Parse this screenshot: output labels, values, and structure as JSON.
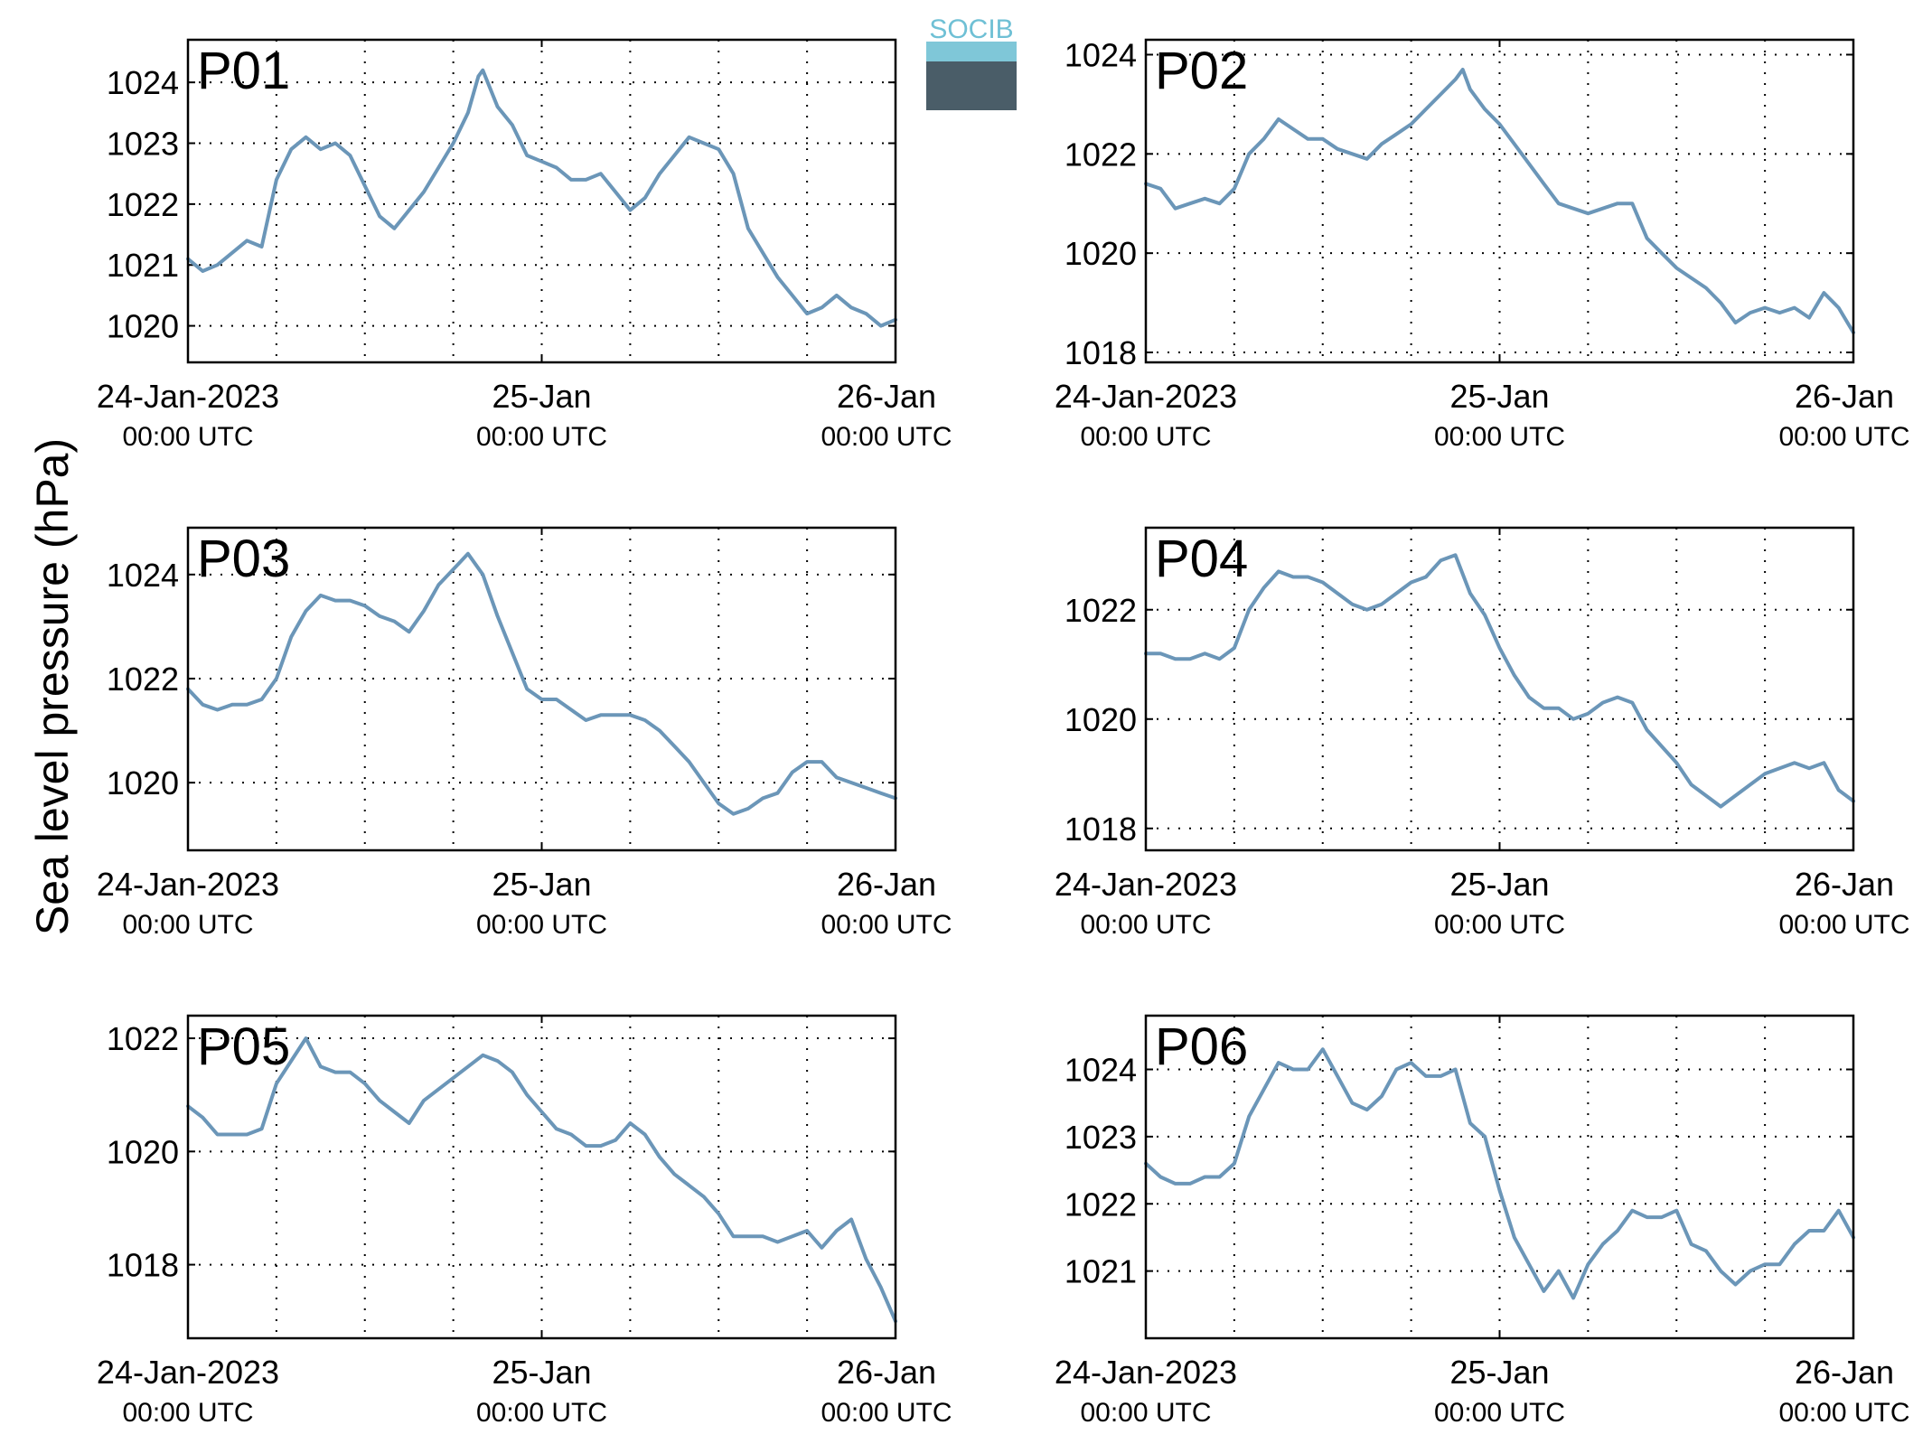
{
  "figure": {
    "ylabel": "Sea level pressure (hPa)",
    "logo_text": "SOCIB",
    "line_color": "#6b96b8",
    "label_color": "#ff0000",
    "x_tick_labels": [
      {
        "top": "24-Jan-2023",
        "bottom": "00:00 UTC"
      },
      {
        "top": "25-Jan",
        "bottom": "00:00 UTC"
      },
      {
        "top": "26-Jan",
        "bottom": "00:00 UTC"
      }
    ]
  },
  "chart_data": [
    {
      "type": "line",
      "title": "P01",
      "x_unit": "hours since 24-Jan-2023 00:00 UTC",
      "xlim": [
        0,
        48
      ],
      "ylim": [
        1019.4,
        1024.7
      ],
      "yticks": [
        1020,
        1021,
        1022,
        1023,
        1024
      ],
      "grid": true,
      "series": [
        {
          "x": [
            0,
            1,
            2,
            3,
            4,
            5,
            6,
            7,
            8,
            9,
            10,
            11,
            12,
            13,
            14,
            15,
            16,
            17,
            18,
            19,
            19.7,
            20,
            21,
            22,
            23,
            24,
            25,
            26,
            27,
            28,
            29,
            30,
            31,
            32,
            33,
            34,
            35,
            36,
            37,
            38,
            39,
            40,
            41,
            42,
            43,
            44,
            45,
            46,
            47,
            48
          ],
          "y": [
            1021.1,
            1020.9,
            1021.0,
            1021.2,
            1021.4,
            1021.3,
            1022.4,
            1022.9,
            1023.1,
            1022.9,
            1023.0,
            1022.8,
            1022.3,
            1021.8,
            1021.6,
            1021.9,
            1022.2,
            1022.6,
            1023.0,
            1023.5,
            1024.1,
            1024.2,
            1023.6,
            1023.3,
            1022.8,
            1022.7,
            1022.6,
            1022.4,
            1022.4,
            1022.5,
            1022.2,
            1021.9,
            1022.1,
            1022.5,
            1022.8,
            1023.1,
            1023.0,
            1022.9,
            1022.5,
            1021.6,
            1021.2,
            1020.8,
            1020.5,
            1020.2,
            1020.3,
            1020.5,
            1020.3,
            1020.2,
            1020.0,
            1020.1
          ]
        }
      ]
    },
    {
      "type": "line",
      "title": "P02",
      "x_unit": "hours since 24-Jan-2023 00:00 UTC",
      "xlim": [
        0,
        48
      ],
      "ylim": [
        1017.8,
        1024.3
      ],
      "yticks": [
        1018,
        1020,
        1022,
        1024
      ],
      "grid": true,
      "series": [
        {
          "x": [
            0,
            1,
            2,
            3,
            4,
            5,
            6,
            7,
            8,
            9,
            10,
            11,
            12,
            13,
            14,
            15,
            16,
            17,
            18,
            19,
            20,
            21,
            21.5,
            22,
            23,
            24,
            25,
            26,
            27,
            28,
            29,
            30,
            31,
            32,
            33,
            34,
            35,
            36,
            37,
            38,
            39,
            40,
            41,
            42,
            43,
            44,
            45,
            46,
            47,
            48
          ],
          "y": [
            1021.4,
            1021.3,
            1020.9,
            1021.0,
            1021.1,
            1021.0,
            1021.3,
            1022.0,
            1022.3,
            1022.7,
            1022.5,
            1022.3,
            1022.3,
            1022.1,
            1022.0,
            1021.9,
            1022.2,
            1022.4,
            1022.6,
            1022.9,
            1023.2,
            1023.5,
            1023.7,
            1023.3,
            1022.9,
            1022.6,
            1022.2,
            1021.8,
            1021.4,
            1021.0,
            1020.9,
            1020.8,
            1020.9,
            1021.0,
            1021.0,
            1020.3,
            1020.0,
            1019.7,
            1019.5,
            1019.3,
            1019.0,
            1018.6,
            1018.8,
            1018.9,
            1018.8,
            1018.9,
            1018.7,
            1019.2,
            1018.9,
            1018.4
          ]
        }
      ]
    },
    {
      "type": "line",
      "title": "P03",
      "x_unit": "hours since 24-Jan-2023 00:00 UTC",
      "xlim": [
        0,
        48
      ],
      "ylim": [
        1018.7,
        1024.9
      ],
      "yticks": [
        1020,
        1022,
        1024
      ],
      "grid": true,
      "series": [
        {
          "x": [
            0,
            1,
            2,
            3,
            4,
            5,
            6,
            7,
            8,
            9,
            10,
            11,
            12,
            13,
            14,
            15,
            16,
            17,
            18,
            19,
            20,
            21,
            22,
            23,
            24,
            25,
            26,
            27,
            28,
            29,
            30,
            31,
            32,
            33,
            34,
            35,
            36,
            37,
            38,
            39,
            40,
            41,
            42,
            43,
            44,
            45,
            46,
            47,
            48
          ],
          "y": [
            1021.8,
            1021.5,
            1021.4,
            1021.5,
            1021.5,
            1021.6,
            1022.0,
            1022.8,
            1023.3,
            1023.6,
            1023.5,
            1023.5,
            1023.4,
            1023.2,
            1023.1,
            1022.9,
            1023.3,
            1023.8,
            1024.1,
            1024.4,
            1024.0,
            1023.2,
            1022.5,
            1021.8,
            1021.6,
            1021.6,
            1021.4,
            1021.2,
            1021.3,
            1021.3,
            1021.3,
            1021.2,
            1021.0,
            1020.7,
            1020.4,
            1020.0,
            1019.6,
            1019.4,
            1019.5,
            1019.7,
            1019.8,
            1020.2,
            1020.4,
            1020.4,
            1020.1,
            1020.0,
            1019.9,
            1019.8,
            1019.7
          ]
        }
      ]
    },
    {
      "type": "line",
      "title": "P04",
      "x_unit": "hours since 24-Jan-2023 00:00 UTC",
      "xlim": [
        0,
        48
      ],
      "ylim": [
        1017.6,
        1023.5
      ],
      "yticks": [
        1018,
        1020,
        1022
      ],
      "grid": true,
      "series": [
        {
          "x": [
            0,
            1,
            2,
            3,
            4,
            5,
            6,
            7,
            8,
            9,
            10,
            11,
            12,
            13,
            14,
            15,
            16,
            17,
            18,
            19,
            20,
            21,
            22,
            23,
            24,
            25,
            26,
            27,
            28,
            29,
            30,
            31,
            32,
            33,
            34,
            35,
            36,
            37,
            38,
            39,
            40,
            41,
            42,
            43,
            44,
            45,
            46,
            47,
            48
          ],
          "y": [
            1021.2,
            1021.2,
            1021.1,
            1021.1,
            1021.2,
            1021.1,
            1021.3,
            1022.0,
            1022.4,
            1022.7,
            1022.6,
            1022.6,
            1022.5,
            1022.3,
            1022.1,
            1022.0,
            1022.1,
            1022.3,
            1022.5,
            1022.6,
            1022.9,
            1023.0,
            1022.3,
            1021.9,
            1021.3,
            1020.8,
            1020.4,
            1020.2,
            1020.2,
            1020.0,
            1020.1,
            1020.3,
            1020.4,
            1020.3,
            1019.8,
            1019.5,
            1019.2,
            1018.8,
            1018.6,
            1018.4,
            1018.6,
            1018.8,
            1019.0,
            1019.1,
            1019.2,
            1019.1,
            1019.2,
            1018.7,
            1018.5
          ]
        }
      ]
    },
    {
      "type": "line",
      "title": "P05",
      "x_unit": "hours since 24-Jan-2023 00:00 UTC",
      "xlim": [
        0,
        48
      ],
      "ylim": [
        1016.7,
        1022.4
      ],
      "yticks": [
        1018,
        1020,
        1022
      ],
      "grid": true,
      "series": [
        {
          "x": [
            0,
            1,
            2,
            3,
            4,
            5,
            6,
            7,
            8,
            9,
            10,
            11,
            12,
            13,
            14,
            15,
            16,
            17,
            18,
            19,
            20,
            21,
            22,
            23,
            24,
            25,
            26,
            27,
            28,
            29,
            30,
            31,
            32,
            33,
            34,
            35,
            36,
            37,
            38,
            39,
            40,
            41,
            42,
            43,
            44,
            45,
            46,
            47,
            48
          ],
          "y": [
            1020.8,
            1020.6,
            1020.3,
            1020.3,
            1020.3,
            1020.4,
            1021.2,
            1021.6,
            1022.0,
            1021.5,
            1021.4,
            1021.4,
            1021.2,
            1020.9,
            1020.7,
            1020.5,
            1020.9,
            1021.1,
            1021.3,
            1021.5,
            1021.7,
            1021.6,
            1021.4,
            1021.0,
            1020.7,
            1020.4,
            1020.3,
            1020.1,
            1020.1,
            1020.2,
            1020.5,
            1020.3,
            1019.9,
            1019.6,
            1019.4,
            1019.2,
            1018.9,
            1018.5,
            1018.5,
            1018.5,
            1018.4,
            1018.5,
            1018.6,
            1018.3,
            1018.6,
            1018.8,
            1018.1,
            1017.6,
            1017.0
          ]
        }
      ]
    },
    {
      "type": "line",
      "title": "P06",
      "x_unit": "hours since 24-Jan-2023 00:00 UTC",
      "xlim": [
        0,
        48
      ],
      "ylim": [
        1020.0,
        1024.8
      ],
      "yticks": [
        1021,
        1022,
        1023,
        1024
      ],
      "grid": true,
      "series": [
        {
          "x": [
            0,
            1,
            2,
            3,
            4,
            5,
            6,
            7,
            8,
            9,
            10,
            11,
            12,
            13,
            14,
            15,
            16,
            17,
            18,
            19,
            20,
            21,
            22,
            23,
            24,
            25,
            26,
            27,
            28,
            29,
            30,
            31,
            32,
            33,
            34,
            35,
            36,
            37,
            38,
            39,
            40,
            41,
            42,
            43,
            44,
            45,
            46,
            47,
            48
          ],
          "y": [
            1022.6,
            1022.4,
            1022.3,
            1022.3,
            1022.4,
            1022.4,
            1022.6,
            1023.3,
            1023.7,
            1024.1,
            1024.0,
            1024.0,
            1024.3,
            1023.9,
            1023.5,
            1023.4,
            1023.6,
            1024.0,
            1024.1,
            1023.9,
            1023.9,
            1024.0,
            1023.2,
            1023.0,
            1022.2,
            1021.5,
            1021.1,
            1020.7,
            1021.0,
            1020.6,
            1021.1,
            1021.4,
            1021.6,
            1021.9,
            1021.8,
            1021.8,
            1021.9,
            1021.4,
            1021.3,
            1021.0,
            1020.8,
            1021.0,
            1021.1,
            1021.1,
            1021.4,
            1021.6,
            1021.6,
            1021.9,
            1021.5
          ]
        }
      ]
    }
  ]
}
